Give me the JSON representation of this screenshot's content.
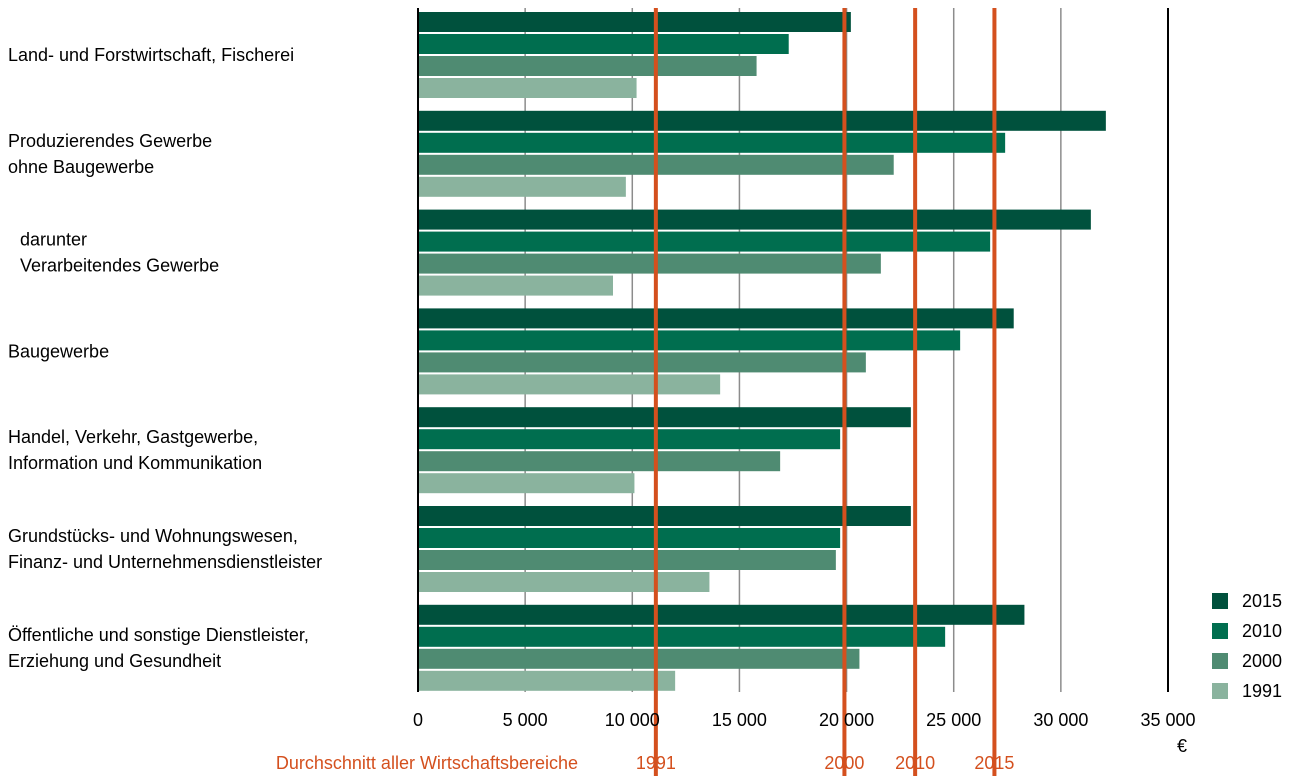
{
  "chart_data": {
    "type": "bar",
    "orientation": "horizontal",
    "categories": [
      [
        "Land- und Forstwirtschaft, Fischerei"
      ],
      [
        "Produzierendes Gewerbe",
        "ohne Baugewerbe"
      ],
      [
        "darunter",
        "Verarbeitendes Gewerbe"
      ],
      [
        "Baugewerbe"
      ],
      [
        "Handel, Verkehr, Gastgewerbe,",
        "Information und Kommunikation"
      ],
      [
        "Grundstücks- und Wohnungswesen,",
        "Finanz- und Unternehmensdienstleister"
      ],
      [
        "Öffentliche und sonstige Dienstleister,",
        "Erziehung und Gesundheit"
      ]
    ],
    "series": [
      {
        "name": "2015",
        "color": "#00513d",
        "values": [
          20200,
          32100,
          31400,
          27800,
          23000,
          23000,
          28300
        ]
      },
      {
        "name": "2010",
        "color": "#006e4f",
        "values": [
          17300,
          27400,
          26700,
          25300,
          19700,
          19700,
          24600
        ]
      },
      {
        "name": "2000",
        "color": "#4f8b72",
        "values": [
          15800,
          22200,
          21600,
          20900,
          16900,
          19500,
          20600
        ]
      },
      {
        "name": "1991",
        "color": "#8ab39e",
        "values": [
          10200,
          9700,
          9100,
          14100,
          10100,
          13600,
          12000
        ]
      }
    ],
    "reference_lines": {
      "caption": "Durchschnitt aller Wirtschaftsbereiche",
      "color": "#d4501e",
      "lines": [
        {
          "label": "1991",
          "value": 11100
        },
        {
          "label": "2000",
          "value": 19900
        },
        {
          "label": "2010",
          "value": 23200
        },
        {
          "label": "2015",
          "value": 26900
        }
      ]
    },
    "x_ticks": [
      {
        "value": 0,
        "label": "0"
      },
      {
        "value": 5000,
        "label": "5 000"
      },
      {
        "value": 10000,
        "label": "10 000"
      },
      {
        "value": 15000,
        "label": "15 000"
      },
      {
        "value": 20000,
        "label": "20 000"
      },
      {
        "value": 25000,
        "label": "25 000"
      },
      {
        "value": 30000,
        "label": "30 000"
      },
      {
        "value": 35000,
        "label": "35 000"
      }
    ],
    "xlim": [
      0,
      35000
    ],
    "unit_label": "€",
    "grid": true,
    "legend_placement": "bottom-right"
  }
}
